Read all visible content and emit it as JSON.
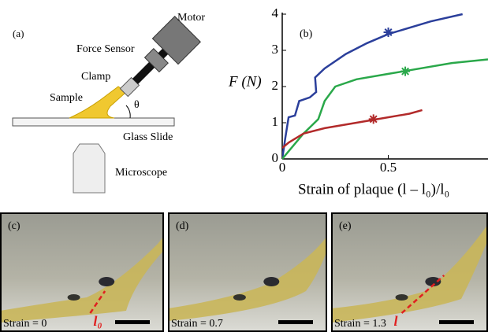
{
  "panel_a": {
    "label": "(a)",
    "motor": "Motor",
    "force_sensor": "Force Sensor",
    "clamp": "Clamp",
    "sample": "Sample",
    "angle": "θ",
    "glass_slide": "Glass Slide",
    "microscope": "Microscope"
  },
  "chart_data": {
    "type": "line",
    "panel_label": "(b)",
    "y_label": "F (N)",
    "x_label": "Strain of plaque (l – l₀)/l₀",
    "xlim": [
      0,
      0.97
    ],
    "ylim": [
      0,
      4
    ],
    "xticks": [
      0,
      0.5
    ],
    "yticks": [
      0,
      1,
      2,
      3,
      4
    ],
    "series": [
      {
        "color": "#2b3f9b",
        "x": [
          0,
          0.015,
          0.03,
          0.06,
          0.08,
          0.13,
          0.16,
          0.155,
          0.2,
          0.3,
          0.4,
          0.5,
          0.7,
          0.85
        ],
        "y": [
          0,
          0.6,
          1.15,
          1.2,
          1.6,
          1.7,
          1.85,
          2.25,
          2.5,
          2.9,
          3.2,
          3.45,
          3.8,
          4.0
        ],
        "marker_x": 0.5,
        "marker_y": 3.5
      },
      {
        "color": "#2aa84a",
        "x": [
          0,
          0.1,
          0.17,
          0.2,
          0.25,
          0.35,
          0.5,
          0.6,
          0.8,
          0.97
        ],
        "y": [
          0,
          0.7,
          1.1,
          1.6,
          2.0,
          2.2,
          2.35,
          2.45,
          2.65,
          2.75
        ],
        "marker_x": 0.58,
        "marker_y": 2.42
      },
      {
        "color": "#b22a2a",
        "x": [
          0,
          0.03,
          0.1,
          0.2,
          0.35,
          0.45,
          0.6,
          0.66
        ],
        "y": [
          0.3,
          0.45,
          0.7,
          0.85,
          1.0,
          1.1,
          1.25,
          1.35
        ],
        "marker_x": 0.43,
        "marker_y": 1.1
      }
    ]
  },
  "photos": [
    {
      "label": "(c)",
      "caption": "Strain = 0",
      "length": "l₀"
    },
    {
      "label": "(d)",
      "caption": "Strain = 0.7"
    },
    {
      "label": "(e)",
      "caption": "Strain = 1.3",
      "length": "l"
    }
  ]
}
